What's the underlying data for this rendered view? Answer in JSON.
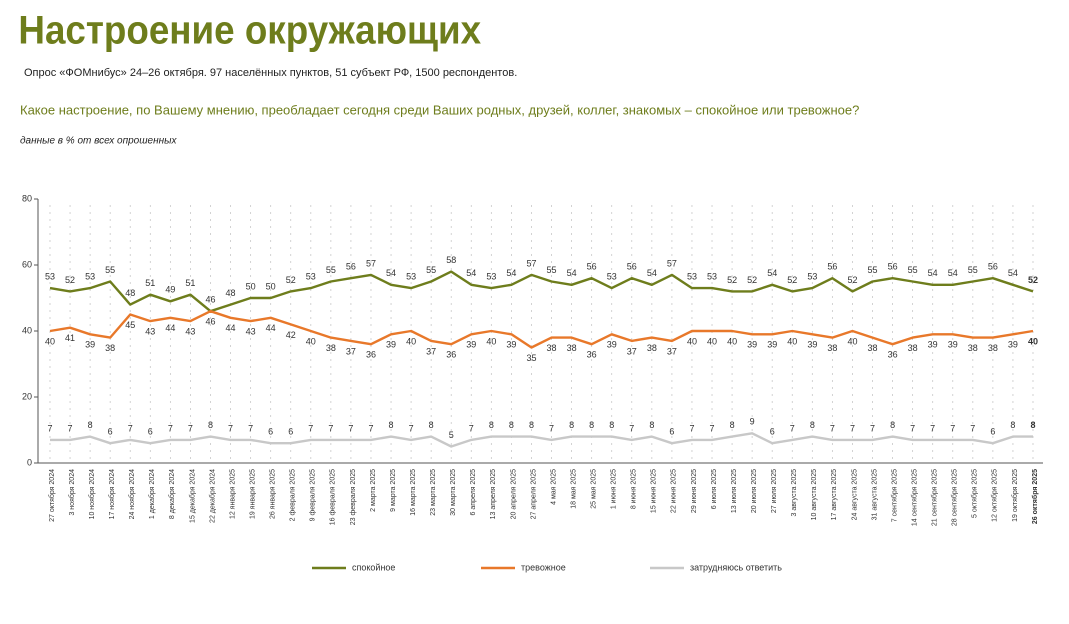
{
  "chart_data": {
    "type": "line",
    "title": "Настроение окружающих",
    "subtitle": "Опрос «ФОМнибус» 24–26 октября. 97 населённых пунктов, 51 субъект РФ, 1500 респондентов.",
    "question": "Какое настроение, по Вашему мнению, преобладает сегодня среди Ваших родных, друзей, коллег, знакомых – спокойное или тревожное?",
    "note": "данные в % от всех опрошенных",
    "categories": [
      "27 октября 2024",
      "3 ноября 2024",
      "10 ноября 2024",
      "17 ноября 2024",
      "24 ноября 2024",
      "1 декабря 2024",
      "8 декабря 2024",
      "15 декабря 2024",
      "22 декабря 2024",
      "12 января 2025",
      "19 января 2025",
      "26 января 2025",
      "2 февраля 2025",
      "9 февраля 2025",
      "16 февраля 2025",
      "23 февраля 2025",
      "2 марта 2025",
      "9 марта 2025",
      "16 марта 2025",
      "23 марта 2025",
      "30 марта 2025",
      "6 апреля 2025",
      "13 апреля 2025",
      "20 апреля 2025",
      "27 апреля 2025",
      "4 мая 2025",
      "18 мая 2025",
      "25 мая 2025",
      "1 июня 2025",
      "8 июня 2025",
      "15 июня 2025",
      "22 июня 2025",
      "29 июня 2025",
      "6 июля 2025",
      "13 июля 2025",
      "20 июля 2025",
      "27 июля 2025",
      "3 августа 2025",
      "10 августа 2025",
      "17 августа 2025",
      "24 августа 2025",
      "31 августа 2025",
      "7 сентября 2025",
      "14 сентября 2025",
      "21 сентября 2025",
      "28 сентября 2025",
      "5 октября 2025",
      "12 октября 2025",
      "19 октября 2025",
      "26 октября 2025"
    ],
    "series": [
      {
        "name": "спокойное",
        "color": "#6e7d1c",
        "values": [
          53,
          52,
          53,
          55,
          48,
          51,
          49,
          51,
          46,
          48,
          50,
          50,
          52,
          53,
          55,
          56,
          57,
          54,
          53,
          55,
          58,
          54,
          53,
          54,
          57,
          55,
          54,
          56,
          53,
          56,
          54,
          57,
          53,
          53,
          52,
          52,
          54,
          52,
          53,
          56,
          52,
          55,
          56,
          55,
          54,
          54,
          55,
          56,
          54,
          52
        ]
      },
      {
        "name": "тревожное",
        "color": "#e8782a",
        "values": [
          40,
          41,
          39,
          38,
          45,
          43,
          44,
          43,
          46,
          44,
          43,
          44,
          42,
          40,
          38,
          37,
          36,
          39,
          40,
          37,
          36,
          39,
          40,
          39,
          35,
          38,
          38,
          36,
          39,
          37,
          38,
          37,
          40,
          40,
          40,
          39,
          39,
          40,
          39,
          38,
          40,
          38,
          36,
          38,
          39,
          39,
          38,
          38,
          39,
          40
        ]
      },
      {
        "name": "затрудняюсь ответить",
        "color": "#c8c8c8",
        "values": [
          7,
          7,
          8,
          6,
          7,
          6,
          7,
          7,
          8,
          7,
          7,
          6,
          6,
          7,
          7,
          7,
          7,
          8,
          7,
          8,
          5,
          7,
          8,
          8,
          8,
          7,
          8,
          8,
          8,
          7,
          8,
          6,
          7,
          7,
          8,
          9,
          6,
          7,
          8,
          7,
          7,
          7,
          8,
          7,
          7,
          7,
          7,
          6,
          8,
          8
        ]
      }
    ],
    "ylim": [
      0,
      80
    ],
    "yticks": [
      0,
      20,
      40,
      60,
      80
    ],
    "grid": true,
    "legend": "bottom"
  }
}
